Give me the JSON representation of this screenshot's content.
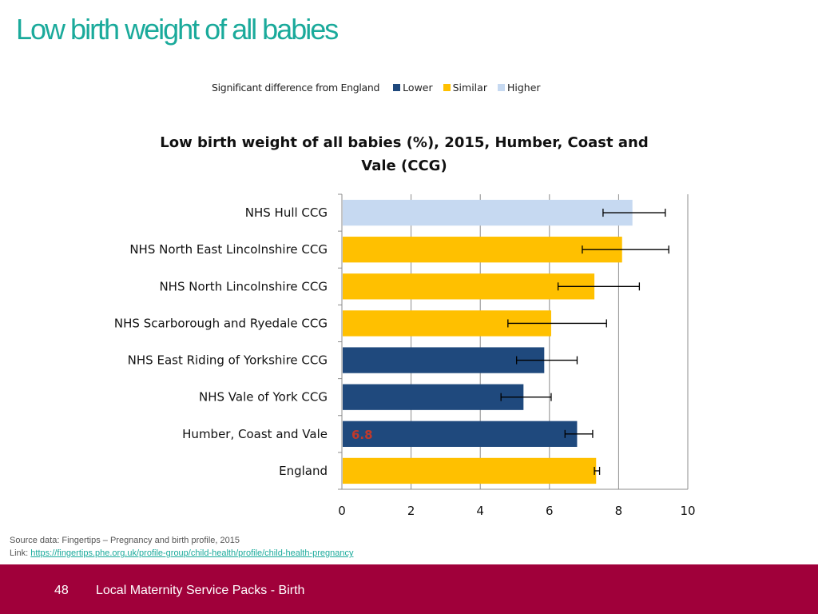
{
  "slide": {
    "title": "Low birth weight of all babies"
  },
  "legend": {
    "title": "Significant difference from England",
    "items": [
      {
        "label": "Lower",
        "color": "#1f497d"
      },
      {
        "label": "Similar",
        "color": "#ffc000"
      },
      {
        "label": "Higher",
        "color": "#c6d9f1"
      }
    ]
  },
  "chart_data": {
    "type": "bar",
    "orientation": "horizontal",
    "title": "Low birth weight of all babies (%), 2015, Humber, Coast and Vale (CCG)",
    "title_line1": "Low birth weight of all babies (%), 2015, Humber, Coast and",
    "title_line2": "Vale (CCG)",
    "xlabel": "",
    "ylabel": "",
    "xlim": [
      0,
      10
    ],
    "xticks": [
      0,
      2,
      4,
      6,
      8,
      10
    ],
    "grid": true,
    "categories": [
      "NHS Hull CCG",
      "NHS North East Lincolnshire CCG",
      "NHS North Lincolnshire CCG",
      "NHS Scarborough and Ryedale CCG",
      "NHS East Riding of Yorkshire CCG",
      "NHS Vale of York CCG",
      "Humber, Coast and Vale",
      "England"
    ],
    "values": [
      8.4,
      8.1,
      7.3,
      6.05,
      5.85,
      5.25,
      6.8,
      7.35
    ],
    "ci_lower": [
      7.55,
      6.95,
      6.25,
      4.8,
      5.05,
      4.6,
      6.45,
      7.3
    ],
    "ci_upper": [
      9.35,
      9.45,
      8.6,
      7.65,
      6.8,
      6.05,
      7.25,
      7.45
    ],
    "significance": [
      "Higher",
      "Similar",
      "Similar",
      "Similar",
      "Lower",
      "Lower",
      "Lower",
      "Similar"
    ],
    "data_labels": [
      {
        "category": "Humber, Coast and Vale",
        "text": "6.8",
        "color": "#c0392b"
      }
    ]
  },
  "source": {
    "text": "Source data: Fingertips – Pregnancy and birth profile, 2015",
    "link_prefix": "Link: ",
    "link_text": "https://fingertips.phe.org.uk/profile-group/child-health/profile/child-health-pregnancy"
  },
  "footer": {
    "page_number": "48",
    "text": "Local Maternity Service Packs - Birth",
    "color": "#a0003a"
  }
}
